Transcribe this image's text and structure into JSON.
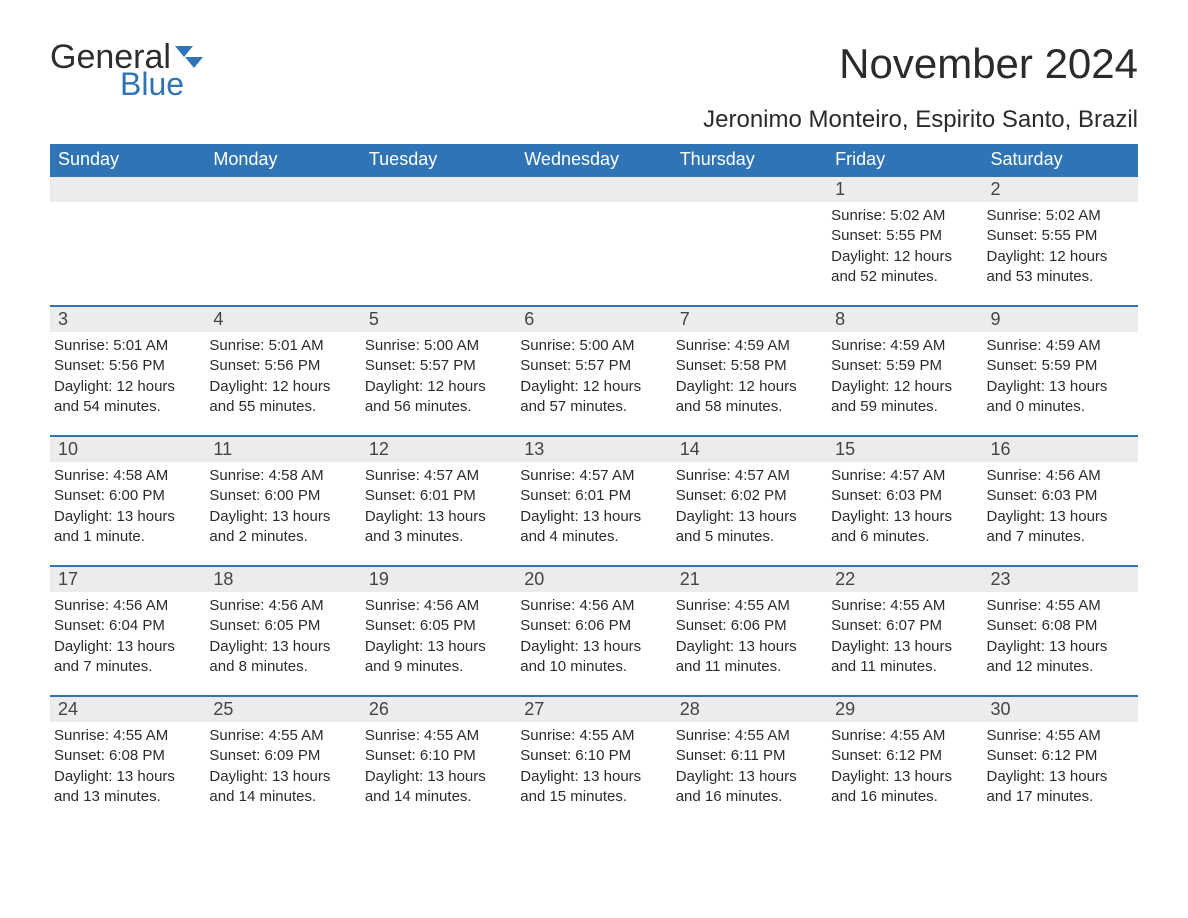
{
  "logo": {
    "text1": "General",
    "text2": "Blue",
    "icon_color": "#2f74b5"
  },
  "title": "November 2024",
  "location": "Jeronimo Monteiro, Espirito Santo, Brazil",
  "colors": {
    "header_bg": "#2f74b5",
    "header_text": "#ffffff",
    "daynum_bg": "#ececec",
    "week_border": "#2f74b5",
    "body_text": "#2b2b2b",
    "page_bg": "#ffffff"
  },
  "day_headers": [
    "Sunday",
    "Monday",
    "Tuesday",
    "Wednesday",
    "Thursday",
    "Friday",
    "Saturday"
  ],
  "weeks": [
    [
      {
        "empty": true
      },
      {
        "empty": true
      },
      {
        "empty": true
      },
      {
        "empty": true
      },
      {
        "empty": true
      },
      {
        "num": "1",
        "sunrise": "Sunrise: 5:02 AM",
        "sunset": "Sunset: 5:55 PM",
        "daylight": "Daylight: 12 hours and 52 minutes."
      },
      {
        "num": "2",
        "sunrise": "Sunrise: 5:02 AM",
        "sunset": "Sunset: 5:55 PM",
        "daylight": "Daylight: 12 hours and 53 minutes."
      }
    ],
    [
      {
        "num": "3",
        "sunrise": "Sunrise: 5:01 AM",
        "sunset": "Sunset: 5:56 PM",
        "daylight": "Daylight: 12 hours and 54 minutes."
      },
      {
        "num": "4",
        "sunrise": "Sunrise: 5:01 AM",
        "sunset": "Sunset: 5:56 PM",
        "daylight": "Daylight: 12 hours and 55 minutes."
      },
      {
        "num": "5",
        "sunrise": "Sunrise: 5:00 AM",
        "sunset": "Sunset: 5:57 PM",
        "daylight": "Daylight: 12 hours and 56 minutes."
      },
      {
        "num": "6",
        "sunrise": "Sunrise: 5:00 AM",
        "sunset": "Sunset: 5:57 PM",
        "daylight": "Daylight: 12 hours and 57 minutes."
      },
      {
        "num": "7",
        "sunrise": "Sunrise: 4:59 AM",
        "sunset": "Sunset: 5:58 PM",
        "daylight": "Daylight: 12 hours and 58 minutes."
      },
      {
        "num": "8",
        "sunrise": "Sunrise: 4:59 AM",
        "sunset": "Sunset: 5:59 PM",
        "daylight": "Daylight: 12 hours and 59 minutes."
      },
      {
        "num": "9",
        "sunrise": "Sunrise: 4:59 AM",
        "sunset": "Sunset: 5:59 PM",
        "daylight": "Daylight: 13 hours and 0 minutes."
      }
    ],
    [
      {
        "num": "10",
        "sunrise": "Sunrise: 4:58 AM",
        "sunset": "Sunset: 6:00 PM",
        "daylight": "Daylight: 13 hours and 1 minute."
      },
      {
        "num": "11",
        "sunrise": "Sunrise: 4:58 AM",
        "sunset": "Sunset: 6:00 PM",
        "daylight": "Daylight: 13 hours and 2 minutes."
      },
      {
        "num": "12",
        "sunrise": "Sunrise: 4:57 AM",
        "sunset": "Sunset: 6:01 PM",
        "daylight": "Daylight: 13 hours and 3 minutes."
      },
      {
        "num": "13",
        "sunrise": "Sunrise: 4:57 AM",
        "sunset": "Sunset: 6:01 PM",
        "daylight": "Daylight: 13 hours and 4 minutes."
      },
      {
        "num": "14",
        "sunrise": "Sunrise: 4:57 AM",
        "sunset": "Sunset: 6:02 PM",
        "daylight": "Daylight: 13 hours and 5 minutes."
      },
      {
        "num": "15",
        "sunrise": "Sunrise: 4:57 AM",
        "sunset": "Sunset: 6:03 PM",
        "daylight": "Daylight: 13 hours and 6 minutes."
      },
      {
        "num": "16",
        "sunrise": "Sunrise: 4:56 AM",
        "sunset": "Sunset: 6:03 PM",
        "daylight": "Daylight: 13 hours and 7 minutes."
      }
    ],
    [
      {
        "num": "17",
        "sunrise": "Sunrise: 4:56 AM",
        "sunset": "Sunset: 6:04 PM",
        "daylight": "Daylight: 13 hours and 7 minutes."
      },
      {
        "num": "18",
        "sunrise": "Sunrise: 4:56 AM",
        "sunset": "Sunset: 6:05 PM",
        "daylight": "Daylight: 13 hours and 8 minutes."
      },
      {
        "num": "19",
        "sunrise": "Sunrise: 4:56 AM",
        "sunset": "Sunset: 6:05 PM",
        "daylight": "Daylight: 13 hours and 9 minutes."
      },
      {
        "num": "20",
        "sunrise": "Sunrise: 4:56 AM",
        "sunset": "Sunset: 6:06 PM",
        "daylight": "Daylight: 13 hours and 10 minutes."
      },
      {
        "num": "21",
        "sunrise": "Sunrise: 4:55 AM",
        "sunset": "Sunset: 6:06 PM",
        "daylight": "Daylight: 13 hours and 11 minutes."
      },
      {
        "num": "22",
        "sunrise": "Sunrise: 4:55 AM",
        "sunset": "Sunset: 6:07 PM",
        "daylight": "Daylight: 13 hours and 11 minutes."
      },
      {
        "num": "23",
        "sunrise": "Sunrise: 4:55 AM",
        "sunset": "Sunset: 6:08 PM",
        "daylight": "Daylight: 13 hours and 12 minutes."
      }
    ],
    [
      {
        "num": "24",
        "sunrise": "Sunrise: 4:55 AM",
        "sunset": "Sunset: 6:08 PM",
        "daylight": "Daylight: 13 hours and 13 minutes."
      },
      {
        "num": "25",
        "sunrise": "Sunrise: 4:55 AM",
        "sunset": "Sunset: 6:09 PM",
        "daylight": "Daylight: 13 hours and 14 minutes."
      },
      {
        "num": "26",
        "sunrise": "Sunrise: 4:55 AM",
        "sunset": "Sunset: 6:10 PM",
        "daylight": "Daylight: 13 hours and 14 minutes."
      },
      {
        "num": "27",
        "sunrise": "Sunrise: 4:55 AM",
        "sunset": "Sunset: 6:10 PM",
        "daylight": "Daylight: 13 hours and 15 minutes."
      },
      {
        "num": "28",
        "sunrise": "Sunrise: 4:55 AM",
        "sunset": "Sunset: 6:11 PM",
        "daylight": "Daylight: 13 hours and 16 minutes."
      },
      {
        "num": "29",
        "sunrise": "Sunrise: 4:55 AM",
        "sunset": "Sunset: 6:12 PM",
        "daylight": "Daylight: 13 hours and 16 minutes."
      },
      {
        "num": "30",
        "sunrise": "Sunrise: 4:55 AM",
        "sunset": "Sunset: 6:12 PM",
        "daylight": "Daylight: 13 hours and 17 minutes."
      }
    ]
  ]
}
